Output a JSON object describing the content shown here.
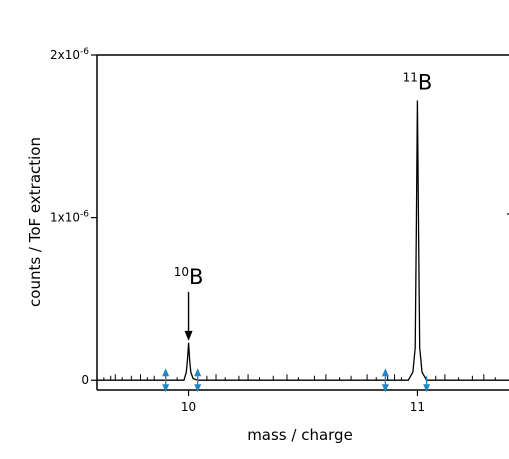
{
  "chart_data": {
    "type": "line",
    "xlabel": "mass / charge",
    "ylabel": "counts / ToF extraction",
    "xlim": [
      9.6,
      11.4
    ],
    "ylim": [
      -6e-08,
      2e-06
    ],
    "x_ticks": [
      {
        "value": 10,
        "label": "10"
      },
      {
        "value": 11,
        "label": "11"
      }
    ],
    "y_ticks": [
      {
        "value": 0,
        "label": "0",
        "sup": ""
      },
      {
        "value": 1e-06,
        "label": "1x10",
        "sup": "-6"
      },
      {
        "value": 2e-06,
        "label": "2x10",
        "sup": "-6"
      }
    ],
    "series": [
      {
        "x": [
          9.6,
          9.98,
          9.99,
          9.995,
          10.0,
          10.005,
          10.01,
          10.02,
          10.04,
          10.96,
          10.98,
          10.99,
          10.995,
          11.0,
          11.005,
          11.01,
          11.02,
          11.04,
          11.4
        ],
        "y": [
          0,
          0,
          5e-08,
          1.2e-07,
          2.3e-07,
          1.2e-07,
          5e-08,
          1e-08,
          0,
          0,
          5e-08,
          2e-07,
          9e-07,
          1.72e-06,
          9e-07,
          2e-07,
          5e-08,
          0,
          0
        ]
      }
    ],
    "noise_spikes_x": [
      9.63,
      9.66,
      9.68,
      9.71,
      9.75,
      9.79,
      9.82,
      9.85,
      9.9,
      9.95,
      10.08,
      10.12,
      10.16,
      10.22,
      10.26,
      10.31,
      10.37,
      10.43,
      10.48,
      10.55,
      10.6,
      10.66,
      10.71,
      10.78,
      10.82,
      10.87,
      10.9,
      10.93,
      11.08,
      11.12,
      11.18,
      11.24,
      11.29,
      11.34
    ],
    "annotations": [
      {
        "sup": "10",
        "text": "B",
        "x": 10.0,
        "y": 2.3e-07,
        "arrow": true
      },
      {
        "sup": "11",
        "text": "B",
        "x": 11.0,
        "y": 1.72e-06,
        "arrow": false
      }
    ],
    "markers": {
      "color": "#1f86c9",
      "up": [
        9.9,
        10.04,
        10.86
      ],
      "down": [
        9.9,
        10.04,
        10.86,
        11.04
      ]
    },
    "grid": false
  }
}
